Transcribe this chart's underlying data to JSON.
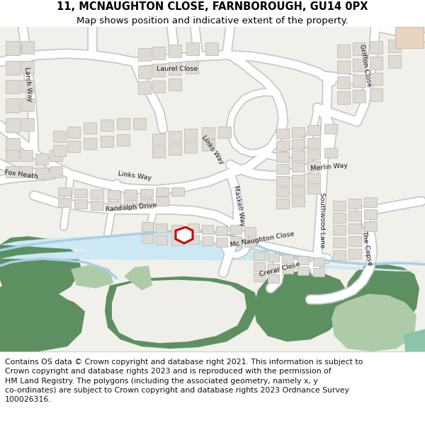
{
  "title_line1": "11, MCNAUGHTON CLOSE, FARNBOROUGH, GU14 0PX",
  "title_line2": "Map shows position and indicative extent of the property.",
  "footer_lines": [
    "Contains OS data © Crown copyright and database right 2021. This information is subject to",
    "Crown copyright and database rights 2023 and is reproduced with the permission of",
    "HM Land Registry. The polygons (including the associated geometry, namely x, y",
    "co-ordinates) are subject to Crown copyright and database rights 2023 Ordnance Survey",
    "100026316."
  ],
  "map_bg": "#f2f0eb",
  "road_color": "#ffffff",
  "road_outline_color": "#c8c8c8",
  "building_fill": "#dedad4",
  "building_outline": "#c0bbb5",
  "green_dark": "#5d9060",
  "green_light": "#aecba8",
  "water_line": "#90c4e0",
  "water_fill": "#cce8f4",
  "plot_color": "#cc0000",
  "plot_fill": "#ffffff",
  "header_bg": "#ffffff",
  "footer_bg": "#ffffff",
  "border_color": "#cccccc",
  "title_fs": 10.5,
  "subtitle_fs": 9.5,
  "footer_fs": 7.8,
  "label_fs": 6.8
}
